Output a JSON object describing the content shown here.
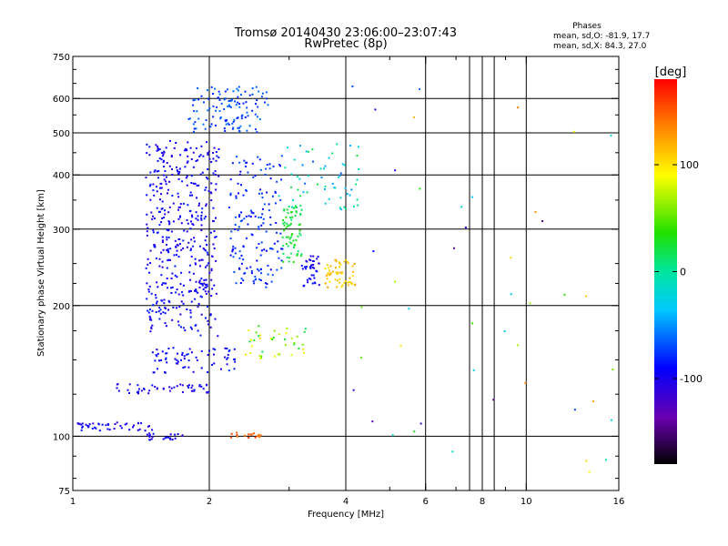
{
  "chart_data": {
    "type": "scatter",
    "title": "Tromsø 20140430 23:06:00–23:07:43",
    "subtitle": "RwPretec (8p)",
    "stats": {
      "heading": "Phases",
      "line1": "mean, sd,O: -81.9, 17.7",
      "line2": "mean, sd,X:  84.3, 27.0"
    },
    "xlabel": "Frequency [MHz]",
    "ylabel": "Stationary phase Virtual Height [km]",
    "x_scale": "log",
    "y_scale": "log",
    "xlim": [
      1,
      16
    ],
    "ylim": [
      75,
      750
    ],
    "x_ticks": [
      1,
      2,
      4,
      6,
      8,
      10,
      16
    ],
    "x_tick_labels": [
      "1",
      "2",
      "4",
      "6",
      "8",
      "10",
      "16"
    ],
    "x_gridlines": [
      2,
      4,
      6,
      7.5,
      8,
      8.5,
      10
    ],
    "y_ticks": [
      75,
      100,
      200,
      300,
      400,
      500,
      600,
      750
    ],
    "y_tick_labels": [
      "75",
      "100",
      "200",
      "300",
      "400",
      "500",
      "600",
      "750"
    ],
    "y_gridlines": [
      100,
      200,
      300,
      400,
      500,
      600
    ],
    "colorbar": {
      "label": "[deg]",
      "range": [
        -180,
        180
      ],
      "ticks": [
        100,
        0,
        -100
      ],
      "tick_labels": [
        "100",
        "0",
        "-100"
      ]
    },
    "grid": true,
    "clusters": [
      {
        "name": "o-trace-low",
        "freq": [
          1.0,
          1.5
        ],
        "height": [
          103,
          108
        ],
        "phase": -100,
        "n": 45
      },
      {
        "name": "o-trace-100",
        "freq": [
          1.45,
          1.75
        ],
        "height": [
          98,
          102
        ],
        "phase": -100,
        "n": 25
      },
      {
        "name": "o-trace-130",
        "freq": [
          1.25,
          2.0
        ],
        "height": [
          125,
          132
        ],
        "phase": -100,
        "n": 50
      },
      {
        "name": "o-trace-150",
        "freq": [
          1.5,
          2.3
        ],
        "height": [
          140,
          160
        ],
        "phase": -90,
        "n": 70
      },
      {
        "name": "f-trace-main",
        "freq": [
          1.45,
          2.1
        ],
        "height": [
          170,
          480
        ],
        "phase": -95,
        "n": 450
      },
      {
        "name": "f-trace-high",
        "freq": [
          1.8,
          2.7
        ],
        "height": [
          500,
          640
        ],
        "phase": -70,
        "n": 120
      },
      {
        "name": "f-trace-mid",
        "freq": [
          2.2,
          2.9
        ],
        "height": [
          220,
          450
        ],
        "phase": -80,
        "n": 160
      },
      {
        "name": "x-trace-green",
        "freq": [
          2.9,
          3.2
        ],
        "height": [
          250,
          340
        ],
        "phase": 25,
        "n": 70
      },
      {
        "name": "x-trace-blue",
        "freq": [
          3.2,
          3.5
        ],
        "height": [
          220,
          260
        ],
        "phase": -100,
        "n": 40
      },
      {
        "name": "x-trace-yellow",
        "freq": [
          3.6,
          4.2
        ],
        "height": [
          220,
          255
        ],
        "phase": 110,
        "n": 60
      },
      {
        "name": "upper-scatter",
        "freq": [
          2.8,
          4.3
        ],
        "height": [
          330,
          480
        ],
        "phase": -20,
        "n": 60
      },
      {
        "name": "lower-scatter",
        "freq": [
          2.4,
          3.3
        ],
        "height": [
          150,
          180
        ],
        "phase": 60,
        "n": 40
      },
      {
        "name": "sporadic-e",
        "freq": [
          2.2,
          2.6
        ],
        "height": [
          99,
          102
        ],
        "phase": 150,
        "n": 18
      },
      {
        "name": "noise",
        "freq": [
          4.0,
          16.0
        ],
        "height": [
          80,
          650
        ],
        "phase": 0,
        "n": 45
      }
    ]
  }
}
